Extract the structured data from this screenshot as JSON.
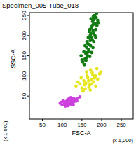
{
  "chart_data": {
    "type": "scatter",
    "title": "Specimen_005-Tube_018",
    "x_label": "FSC-A",
    "y_label": "SSC-A",
    "x_unit": "(x 1,000)",
    "y_unit": "(x 1,000)",
    "xlim": [
      17,
      280
    ],
    "ylim": [
      -7,
      257
    ],
    "xticks": [
      50,
      100,
      150,
      200,
      250
    ],
    "yticks": [
      50,
      100,
      150,
      200,
      250
    ],
    "marker": "dot",
    "series": [
      {
        "color": "#127a12",
        "x": [
          152,
          158,
          148,
          160,
          165,
          155,
          170,
          162,
          168,
          175,
          158,
          163,
          172,
          178,
          166,
          180,
          171,
          176,
          183,
          169,
          185,
          174,
          179,
          188,
          165,
          181,
          177,
          186,
          173,
          190,
          160,
          167,
          184,
          178,
          182,
          171,
          175,
          168,
          187,
          162,
          156,
          150,
          164,
          170,
          176,
          180,
          185,
          191,
          173,
          179
        ],
        "values": [
          135,
          142,
          150,
          138,
          150,
          160,
          148,
          170,
          162,
          158,
          175,
          185,
          175,
          170,
          195,
          185,
          200,
          190,
          200,
          210,
          215,
          220,
          228,
          225,
          180,
          240,
          235,
          245,
          205,
          238,
          155,
          165,
          230,
          212,
          250,
          188,
          196,
          178,
          255,
          145,
          128,
          140,
          158,
          215,
          225,
          205,
          195,
          232,
          242,
          248
        ]
      },
      {
        "color": "#e6e61e",
        "x": [
          135,
          145,
          150,
          155,
          160,
          165,
          170,
          175,
          180,
          185,
          190,
          195,
          158,
          162,
          168,
          172,
          178,
          148,
          153,
          167,
          174,
          182,
          188,
          140,
          198,
          163,
          171,
          176,
          157,
          185
        ],
        "values": [
          75,
          80,
          70,
          88,
          82,
          95,
          78,
          90,
          85,
          100,
          92,
          105,
          68,
          110,
          72,
          115,
          102,
          95,
          62,
          88,
          80,
          95,
          118,
          85,
          110,
          100,
          65,
          108,
          78,
          75
        ]
      },
      {
        "color": "#cc40dd",
        "x": [
          95,
          100,
          105,
          110,
          115,
          120,
          125,
          130,
          135,
          140,
          108,
          113,
          118,
          123,
          128,
          103,
          112,
          117,
          122,
          132,
          98,
          106,
          115,
          126,
          137,
          145,
          110,
          119,
          124,
          129
        ],
        "values": [
          32,
          28,
          35,
          30,
          38,
          33,
          40,
          36,
          42,
          45,
          25,
          40,
          30,
          35,
          28,
          38,
          33,
          43,
          46,
          40,
          35,
          30,
          26,
          31,
          38,
          48,
          36,
          41,
          29,
          44
        ]
      }
    ]
  }
}
